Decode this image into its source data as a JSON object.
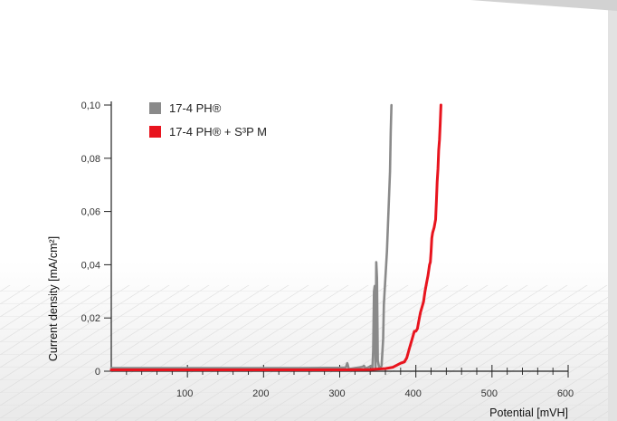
{
  "colors": {
    "series_grey": "#8a8a8a",
    "series_red": "#e8141e",
    "axis": "#222222",
    "background_top": "#ffffff",
    "background_bottom": "#ececec",
    "border_accent": "#d0d0d0"
  },
  "chart_data": {
    "type": "line",
    "title": "",
    "xlabel": "Potential [mVH]",
    "ylabel": "Current density [mA/cm²]",
    "xlim": [
      0,
      600
    ],
    "ylim": [
      0,
      0.1
    ],
    "x_ticks": [
      100,
      200,
      300,
      400,
      500,
      600
    ],
    "x_tick_labels": [
      "100",
      "200",
      "300",
      "400",
      "500",
      "600"
    ],
    "y_ticks": [
      0,
      0.02,
      0.04,
      0.06,
      0.08,
      0.1
    ],
    "y_tick_labels": [
      "0",
      "0,02",
      "0,04",
      "0,06",
      "0,08",
      "0,10"
    ],
    "x_minor_step": 20,
    "grid": false,
    "legend_position": "top-left",
    "series": [
      {
        "name": "17-4 PH®",
        "color": "#8a8a8a",
        "points": [
          [
            0,
            0.0012
          ],
          [
            50,
            0.0012
          ],
          [
            100,
            0.0012
          ],
          [
            150,
            0.0012
          ],
          [
            200,
            0.0012
          ],
          [
            250,
            0.0012
          ],
          [
            300,
            0.0013
          ],
          [
            308,
            0.0014
          ],
          [
            310,
            0.003
          ],
          [
            312,
            0.0008
          ],
          [
            320,
            0.0012
          ],
          [
            330,
            0.0016
          ],
          [
            332,
            0.002
          ],
          [
            334,
            0.001
          ],
          [
            338,
            0.0015
          ],
          [
            341,
            0.002
          ],
          [
            343,
            0.0008
          ],
          [
            344,
            0.008
          ],
          [
            345,
            0.03
          ],
          [
            346,
            0.032
          ],
          [
            347,
            0.001
          ],
          [
            348,
            0.041
          ],
          [
            349,
            0.035
          ],
          [
            350,
            0.004
          ],
          [
            352,
            0.001
          ],
          [
            355,
            0.002
          ],
          [
            357,
            0.012
          ],
          [
            358,
            0.025
          ],
          [
            360,
            0.035
          ],
          [
            362,
            0.045
          ],
          [
            364,
            0.06
          ],
          [
            366,
            0.075
          ],
          [
            367,
            0.09
          ],
          [
            368,
            0.1
          ]
        ]
      },
      {
        "name": "17-4 PH® + S³P M",
        "color": "#e8141e",
        "points": [
          [
            0,
            0.0005
          ],
          [
            50,
            0.0005
          ],
          [
            100,
            0.0005
          ],
          [
            150,
            0.0005
          ],
          [
            200,
            0.0005
          ],
          [
            250,
            0.0005
          ],
          [
            300,
            0.0005
          ],
          [
            340,
            0.0006
          ],
          [
            350,
            0.0008
          ],
          [
            360,
            0.001
          ],
          [
            370,
            0.0015
          ],
          [
            380,
            0.003
          ],
          [
            385,
            0.0035
          ],
          [
            388,
            0.005
          ],
          [
            392,
            0.009
          ],
          [
            395,
            0.012
          ],
          [
            398,
            0.015
          ],
          [
            400,
            0.015
          ],
          [
            402,
            0.016
          ],
          [
            404,
            0.019
          ],
          [
            406,
            0.022
          ],
          [
            408,
            0.024
          ],
          [
            410,
            0.026
          ],
          [
            412,
            0.03
          ],
          [
            414,
            0.033
          ],
          [
            416,
            0.036
          ],
          [
            418,
            0.04
          ],
          [
            419,
            0.041
          ],
          [
            420,
            0.045
          ],
          [
            421,
            0.05
          ],
          [
            422,
            0.052
          ],
          [
            424,
            0.054
          ],
          [
            426,
            0.057
          ],
          [
            427,
            0.064
          ],
          [
            428,
            0.071
          ],
          [
            429,
            0.076
          ],
          [
            430,
            0.083
          ],
          [
            431,
            0.087
          ],
          [
            432,
            0.093
          ],
          [
            433,
            0.1
          ]
        ]
      }
    ]
  }
}
